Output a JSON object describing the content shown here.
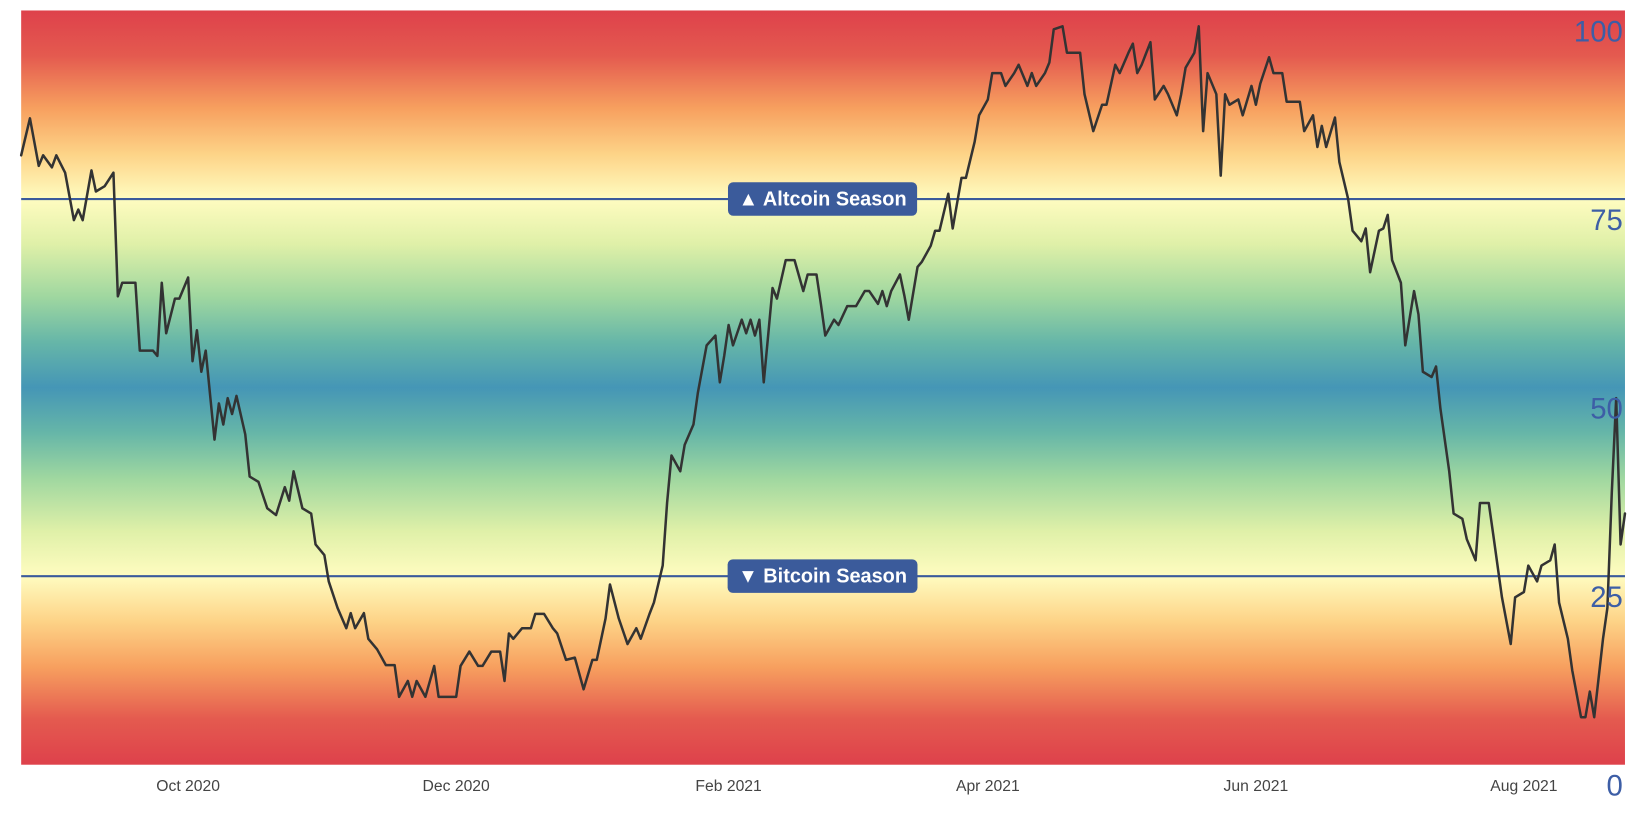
{
  "chart_data": {
    "type": "line",
    "color": "#333333",
    "xlim": [
      0,
      365
    ],
    "ylim": [
      0,
      100
    ],
    "yticks": [
      0,
      25,
      50,
      75,
      100
    ],
    "xticks": [
      {
        "value": 38,
        "label": "Oct 2020"
      },
      {
        "value": 99,
        "label": "Dec 2020"
      },
      {
        "value": 161,
        "label": "Feb 2021"
      },
      {
        "value": 220,
        "label": "Apr 2021"
      },
      {
        "value": 281,
        "label": "Jun 2021"
      },
      {
        "value": 342,
        "label": "Aug 2021"
      }
    ],
    "grid": false,
    "reference_lines": [
      {
        "value": 75,
        "label": "▲ Altcoin Season",
        "color": "#3b5b9b"
      },
      {
        "value": 25,
        "label": "▼ Bitcoin Season",
        "color": "#3b5b9b"
      }
    ],
    "x": [
      0,
      2,
      4,
      5,
      7,
      8,
      10,
      12,
      13,
      14,
      16,
      17,
      19,
      21,
      22,
      23,
      26,
      27,
      30,
      31,
      32,
      33,
      35,
      36,
      38,
      39,
      40,
      41,
      42,
      44,
      45,
      46,
      47,
      48,
      49,
      51,
      52,
      54,
      56,
      58,
      60,
      61,
      62,
      64,
      66,
      67,
      69,
      70,
      72,
      74,
      75,
      76,
      78,
      79,
      81,
      83,
      85,
      86,
      88,
      89,
      90,
      92,
      94,
      95,
      99,
      100,
      102,
      104,
      105,
      107,
      109,
      110,
      111,
      112,
      114,
      116,
      117,
      119,
      121,
      122,
      124,
      126,
      128,
      130,
      131,
      133,
      134,
      136,
      138,
      140,
      141,
      143,
      144,
      146,
      147,
      148,
      150,
      151,
      153,
      154,
      156,
      158,
      159,
      160,
      161,
      162,
      164,
      165,
      166,
      167,
      168,
      169,
      170,
      171,
      172,
      174,
      176,
      178,
      179,
      181,
      182,
      183,
      185,
      186,
      188,
      190,
      192,
      193,
      195,
      196,
      197,
      198,
      200,
      201,
      202,
      204,
      205,
      207,
      208,
      209,
      211,
      212,
      214,
      215,
      217,
      218,
      220,
      221,
      223,
      224,
      226,
      227,
      229,
      230,
      231,
      233,
      234,
      235,
      237,
      238,
      241,
      242,
      244,
      246,
      247,
      249,
      250,
      252,
      253,
      254,
      255,
      257,
      258,
      260,
      261,
      263,
      264,
      265,
      267,
      268,
      269,
      270,
      272,
      273,
      274,
      275,
      277,
      278,
      280,
      281,
      282,
      284,
      285,
      287,
      288,
      291,
      292,
      294,
      295,
      296,
      297,
      299,
      300,
      302,
      303,
      305,
      306,
      307,
      309,
      310,
      311,
      312,
      314,
      315,
      317,
      318,
      319,
      321,
      322,
      323,
      325,
      326,
      328,
      329,
      331,
      332,
      334,
      335,
      337,
      339,
      340,
      342,
      343,
      345,
      346,
      348,
      349,
      350,
      352,
      353,
      355,
      356,
      357,
      358,
      360,
      361,
      362,
      363,
      364,
      365
    ],
    "values": [
      80.8,
      85.7,
      79.4,
      80.8,
      79.2,
      80.8,
      78.5,
      72.2,
      73.6,
      72.2,
      78.8,
      76.0,
      76.7,
      78.5,
      62.1,
      63.9,
      63.9,
      54.9,
      54.9,
      54.2,
      63.9,
      57.2,
      61.8,
      61.8,
      64.6,
      53.5,
      57.6,
      52.1,
      54.9,
      43.1,
      47.9,
      45.1,
      48.6,
      46.5,
      48.9,
      43.8,
      38.2,
      37.5,
      34.0,
      33.1,
      36.8,
      35.0,
      38.9,
      34.0,
      33.3,
      29.2,
      27.8,
      24.3,
      20.8,
      18.1,
      20.1,
      18.1,
      20.1,
      16.7,
      15.3,
      13.2,
      13.2,
      9.0,
      11.1,
      9.0,
      11.1,
      9.0,
      13.1,
      9.0,
      9.0,
      13.1,
      15.0,
      13.1,
      13.1,
      15.0,
      15.0,
      11.1,
      17.4,
      16.7,
      18.1,
      18.1,
      20.0,
      20.0,
      18.1,
      17.4,
      13.9,
      14.2,
      10.0,
      13.9,
      13.9,
      19.4,
      23.9,
      19.4,
      16.0,
      18.1,
      16.7,
      20.0,
      21.5,
      26.4,
      34.7,
      41.0,
      38.9,
      42.4,
      45.1,
      49.3,
      55.6,
      56.9,
      50.7,
      54.2,
      58.3,
      55.6,
      59.0,
      57.2,
      59.0,
      56.9,
      59.0,
      50.7,
      56.9,
      63.2,
      61.8,
      66.9,
      66.9,
      62.8,
      65.0,
      65.0,
      61.1,
      56.9,
      59.0,
      58.3,
      60.8,
      60.8,
      62.8,
      62.8,
      61.1,
      62.8,
      60.8,
      62.8,
      65.0,
      62.2,
      59.0,
      66.0,
      66.7,
      68.8,
      70.8,
      70.8,
      75.7,
      71.1,
      77.8,
      77.8,
      82.6,
      86.1,
      88.2,
      91.7,
      91.7,
      90.0,
      91.7,
      92.8,
      90.0,
      91.7,
      90.0,
      91.7,
      93.1,
      97.5,
      97.9,
      94.4,
      94.4,
      88.9,
      84.0,
      87.5,
      87.5,
      92.8,
      91.7,
      94.4,
      95.6,
      91.7,
      92.8,
      95.8,
      88.2,
      90.0,
      88.9,
      86.1,
      88.9,
      92.4,
      94.4,
      97.9,
      84.0,
      91.7,
      88.9,
      78.1,
      88.9,
      87.5,
      88.2,
      86.1,
      90.0,
      87.5,
      90.3,
      93.8,
      91.7,
      91.7,
      87.9,
      87.9,
      84.0,
      86.1,
      81.9,
      84.7,
      81.9,
      85.8,
      79.9,
      75.0,
      70.8,
      69.4,
      71.1,
      65.3,
      70.8,
      71.1,
      72.9,
      66.9,
      63.9,
      55.6,
      62.8,
      59.7,
      52.1,
      51.4,
      52.8,
      47.2,
      38.9,
      33.3,
      32.6,
      29.9,
      27.1,
      34.7,
      34.7,
      30.6,
      22.2,
      16.0,
      22.2,
      22.9,
      26.4,
      24.3,
      26.4,
      27.1,
      29.2,
      21.5,
      16.7,
      12.5,
      6.3,
      6.3,
      9.7,
      6.3,
      16.7,
      20.8,
      36.1,
      48.6,
      29.2,
      33.3
    ]
  }
}
